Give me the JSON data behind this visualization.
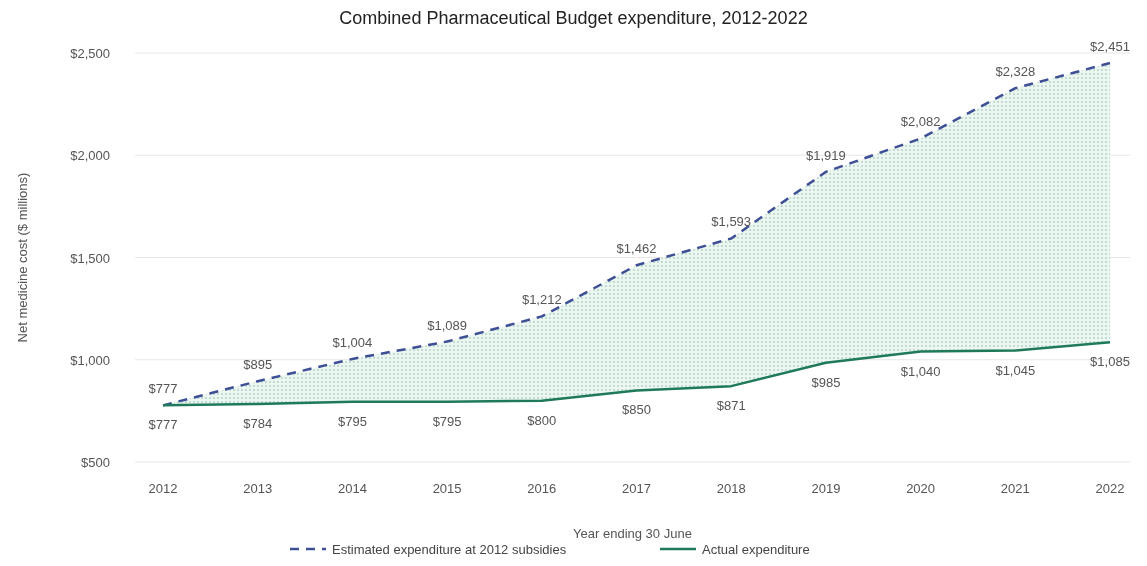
{
  "chart_data": {
    "type": "line",
    "title": "Combined Pharmaceutical Budget expenditure, 2012-2022",
    "xlabel": "Year ending 30 June",
    "ylabel": "Net medicine cost ($ millions)",
    "categories": [
      "2012",
      "2013",
      "2014",
      "2015",
      "2016",
      "2017",
      "2018",
      "2019",
      "2020",
      "2021",
      "2022"
    ],
    "ylim": [
      500,
      2500
    ],
    "yticks": [
      {
        "value": 500,
        "label": "$500"
      },
      {
        "value": 1000,
        "label": "$1,000"
      },
      {
        "value": 1500,
        "label": "$1,500"
      },
      {
        "value": 2000,
        "label": "$2,000"
      },
      {
        "value": 2500,
        "label": "$2,500"
      }
    ],
    "grid": "y",
    "legend": "bottom",
    "marker": "none",
    "series": [
      {
        "name": "Estimated expenditure at 2012 subsidies",
        "color": "#3e4f96",
        "line_style": "dashed",
        "values": [
          777,
          895,
          1004,
          1089,
          1212,
          1462,
          1593,
          1919,
          2082,
          2328,
          2451
        ],
        "lower": [
          777,
          784,
          795,
          795,
          800,
          850,
          871,
          985,
          1040,
          1045,
          1085
        ],
        "upper": [
          777,
          895,
          1004,
          1089,
          1212,
          1462,
          1593,
          1919,
          2082,
          2328,
          2451
        ],
        "value_labels": [
          "$777",
          "$895",
          "$1,004",
          "$1,089",
          "$1,212",
          "$1,462",
          "$1,593",
          "$1,919",
          "$2,082",
          "$2,328",
          "$2,451"
        ]
      },
      {
        "name": "Actual expenditure",
        "color": "#1f7a5c",
        "line_style": "solid",
        "values": [
          777,
          784,
          795,
          795,
          800,
          850,
          871,
          985,
          1040,
          1045,
          1085
        ],
        "value_labels": [
          "$777",
          "$784",
          "$795",
          "$795",
          "$800",
          "$850",
          "$871",
          "$985",
          "$1,040",
          "$1,045",
          "$1,085"
        ]
      }
    ]
  }
}
